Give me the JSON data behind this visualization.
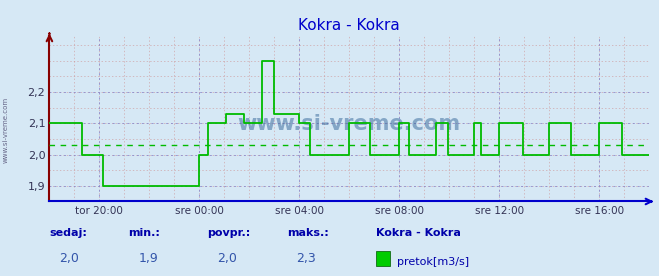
{
  "title": "Kokra - Kokra",
  "title_color": "#0000cc",
  "bg_color": "#d6e8f5",
  "plot_bg_color": "#d6e8f5",
  "grid_color_red": "#cc8888",
  "grid_color_blue": "#8888cc",
  "line_color": "#00bb00",
  "avg_line_color": "#00bb00",
  "avg_value": 2.03,
  "ylim": [
    1.85,
    2.38
  ],
  "yticks": [
    1.9,
    2.0,
    2.1,
    2.2
  ],
  "ytick_labels": [
    "1,9",
    "2,0",
    "2,1",
    "2,2"
  ],
  "xtick_labels": [
    "tor 20:00",
    "sre 00:00",
    "sre 04:00",
    "sre 08:00",
    "sre 12:00",
    "sre 16:00"
  ],
  "xtick_positions": [
    0.083,
    0.25,
    0.417,
    0.583,
    0.75,
    0.917
  ],
  "footer_labels": [
    "sedaj:",
    "min.:",
    "povpr.:",
    "maks.:"
  ],
  "footer_values": [
    "2,0",
    "1,9",
    "2,0",
    "2,3"
  ],
  "footer_series_name": "Kokra - Kokra",
  "footer_legend_label": "pretok[m3/s]",
  "watermark": "www.si-vreme.com",
  "x_axis_color": "#0000cc",
  "y_axis_color": "#880000",
  "step_data_x": [
    0.0,
    0.0,
    0.055,
    0.055,
    0.09,
    0.09,
    0.25,
    0.25,
    0.265,
    0.265,
    0.295,
    0.295,
    0.325,
    0.325,
    0.355,
    0.355,
    0.375,
    0.375,
    0.417,
    0.417,
    0.435,
    0.435,
    0.5,
    0.5,
    0.535,
    0.535,
    0.583,
    0.583,
    0.6,
    0.6,
    0.645,
    0.645,
    0.665,
    0.665,
    0.708,
    0.708,
    0.72,
    0.72,
    0.75,
    0.75,
    0.79,
    0.79,
    0.833,
    0.833,
    0.87,
    0.87,
    0.917,
    0.917,
    0.955,
    0.955,
    1.0,
    1.0
  ],
  "step_data_y": [
    2.1,
    2.1,
    2.1,
    2.0,
    2.0,
    1.9,
    1.9,
    2.0,
    2.0,
    2.1,
    2.1,
    2.13,
    2.13,
    2.1,
    2.1,
    2.3,
    2.3,
    2.13,
    2.13,
    2.1,
    2.1,
    2.0,
    2.0,
    2.1,
    2.1,
    2.0,
    2.0,
    2.1,
    2.1,
    2.0,
    2.0,
    2.1,
    2.1,
    2.0,
    2.0,
    2.1,
    2.1,
    2.0,
    2.0,
    2.1,
    2.1,
    2.0,
    2.0,
    2.1,
    2.1,
    2.0,
    2.0,
    2.1,
    2.1,
    2.0,
    2.0,
    2.0
  ]
}
